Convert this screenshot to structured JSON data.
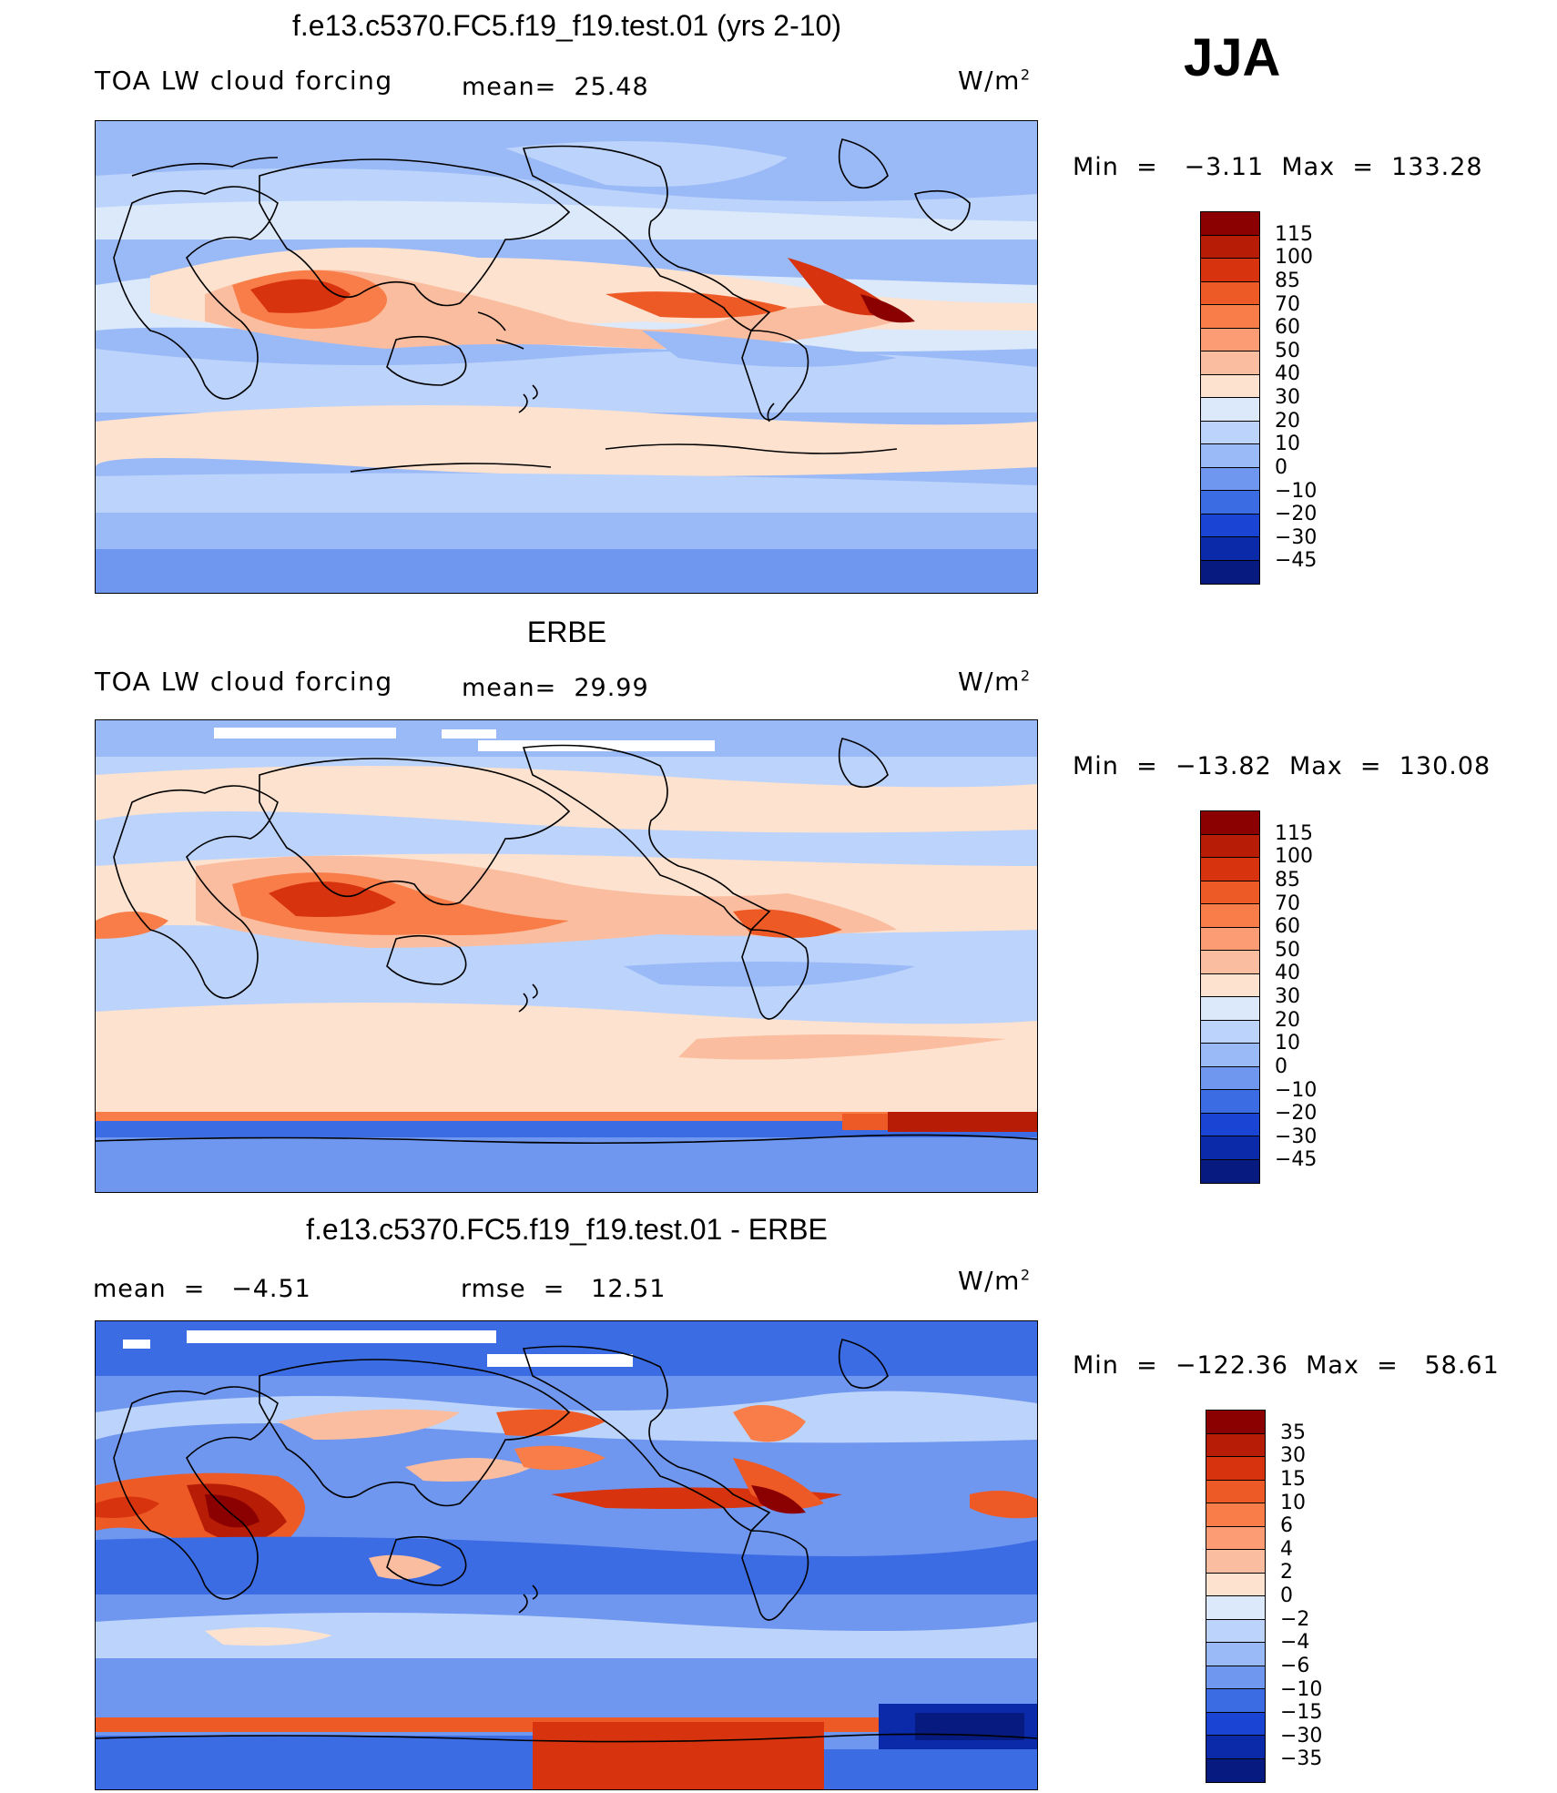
{
  "season": "JJA",
  "panels": [
    {
      "title": "f.e13.c5370.FC5.f19_f19.test.01 (yrs 2-10)",
      "label": "TOA LW cloud forcing",
      "stat_a": "mean=  25.48",
      "stat_b": "",
      "units": "W/m",
      "units_exp": "2",
      "minmax": "Min  =   −3.11  Max  =  133.28",
      "cbar_levels": [
        "115",
        "100",
        "85",
        "70",
        "60",
        "50",
        "40",
        "30",
        "20",
        "10",
        "0",
        "−10",
        "−20",
        "−30",
        "−45"
      ],
      "cbar_colors": [
        "#8b0000",
        "#b71c06",
        "#d7330e",
        "#ee5a26",
        "#f87d48",
        "#fb9c74",
        "#fbbd9f",
        "#fde2cf",
        "#dce9fb",
        "#bcd3fb",
        "#9ab9f7",
        "#6f97ef",
        "#3c6ce4",
        "#1a44d4",
        "#0b2aaa",
        "#061a80"
      ]
    },
    {
      "title": "ERBE",
      "label": "TOA LW cloud forcing",
      "stat_a": "mean=  29.99",
      "stat_b": "",
      "units": "W/m",
      "units_exp": "2",
      "minmax": "Min  =  −13.82  Max  =  130.08",
      "cbar_levels": [
        "115",
        "100",
        "85",
        "70",
        "60",
        "50",
        "40",
        "30",
        "20",
        "10",
        "0",
        "−10",
        "−20",
        "−30",
        "−45"
      ],
      "cbar_colors": [
        "#8b0000",
        "#b71c06",
        "#d7330e",
        "#ee5a26",
        "#f87d48",
        "#fb9c74",
        "#fbbd9f",
        "#fde2cf",
        "#dce9fb",
        "#bcd3fb",
        "#9ab9f7",
        "#6f97ef",
        "#3c6ce4",
        "#1a44d4",
        "#0b2aaa",
        "#061a80"
      ]
    },
    {
      "title": "f.e13.c5370.FC5.f19_f19.test.01 - ERBE",
      "label": "mean  =   −4.51",
      "stat_a": "rmse  =   12.51",
      "stat_b": "",
      "units": "W/m",
      "units_exp": "2",
      "minmax": "Min  =  −122.36  Max  =   58.61",
      "cbar_levels": [
        "35",
        "30",
        "15",
        "10",
        "6",
        "4",
        "2",
        "0",
        "−2",
        "−4",
        "−6",
        "−10",
        "−15",
        "−30",
        "−35"
      ],
      "cbar_colors": [
        "#8b0000",
        "#b71c06",
        "#d7330e",
        "#ee5a26",
        "#f87d48",
        "#fb9c74",
        "#fbbd9f",
        "#fde2cf",
        "#dce9fb",
        "#bcd3fb",
        "#9ab9f7",
        "#6f97ef",
        "#3c6ce4",
        "#1a44d4",
        "#0b2aaa",
        "#061a80"
      ]
    }
  ],
  "palette": {
    "deep_red": "#8b0000",
    "red": "#d7330e",
    "orange": "#f87d48",
    "salmon": "#fbbd9f",
    "cream": "#fde2cf",
    "pale_blue": "#dce9fb",
    "light_blue": "#bcd3fb",
    "mid_blue": "#9ab9f7",
    "blue": "#6f97ef",
    "strong_blue": "#3c6ce4",
    "dark_blue": "#0b2aaa",
    "missing": "#ffffff"
  }
}
